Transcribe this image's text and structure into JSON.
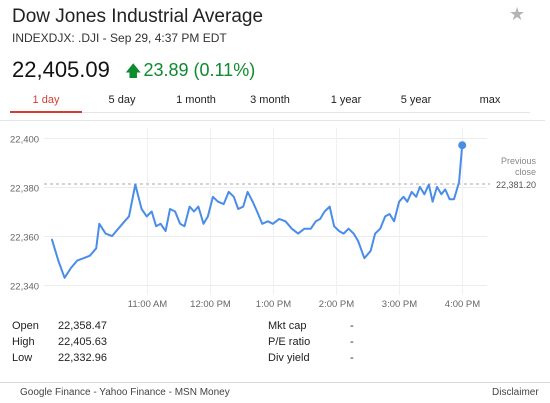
{
  "header": {
    "title": "Dow Jones Industrial Average",
    "subtitle": "INDEXDJX: .DJI - Sep 29, 4:37 PM EDT",
    "price": "22,405.09",
    "change": "23.89 (0.11%)",
    "change_color": "#0e8a2f",
    "star_icon": "star-icon"
  },
  "tabs": [
    {
      "label": "1 day",
      "active": true
    },
    {
      "label": "5 day",
      "active": false
    },
    {
      "label": "1 month",
      "active": false
    },
    {
      "label": "3 month",
      "active": false
    },
    {
      "label": "1 year",
      "active": false
    },
    {
      "label": "5 year",
      "active": false
    },
    {
      "label": "max",
      "active": false
    }
  ],
  "chart_data": {
    "type": "line",
    "y_ticks": [
      "22,400",
      "22,380",
      "22,360",
      "22,340"
    ],
    "y_tick_values": [
      22400,
      22380,
      22360,
      22340
    ],
    "x_ticks": [
      "11:00 AM",
      "12:00 PM",
      "1:00 PM",
      "2:00 PM",
      "3:00 PM",
      "4:00 PM"
    ],
    "x_tick_hours": [
      11,
      12,
      13,
      14,
      15,
      16
    ],
    "ylim": [
      22336,
      22404
    ],
    "xlim_hours": [
      9.5,
      16.25
    ],
    "previous_close": 22381.2,
    "previous_close_label": "Previous close",
    "previous_close_value": "22,381.20",
    "line_color": "#4a8de8",
    "series": [
      [
        9.5,
        22358.5
      ],
      [
        9.6,
        22350
      ],
      [
        9.7,
        22343
      ],
      [
        9.8,
        22347
      ],
      [
        9.9,
        22350
      ],
      [
        10.0,
        22351
      ],
      [
        10.1,
        22352
      ],
      [
        10.2,
        22355
      ],
      [
        10.25,
        22365
      ],
      [
        10.35,
        22361
      ],
      [
        10.45,
        22360
      ],
      [
        10.55,
        22363
      ],
      [
        10.65,
        22366
      ],
      [
        10.72,
        22368
      ],
      [
        10.82,
        22381
      ],
      [
        10.92,
        22371
      ],
      [
        11.0,
        22368
      ],
      [
        11.08,
        22370
      ],
      [
        11.15,
        22364
      ],
      [
        11.22,
        22365
      ],
      [
        11.3,
        22362
      ],
      [
        11.37,
        22371
      ],
      [
        11.45,
        22370
      ],
      [
        11.53,
        22365
      ],
      [
        11.6,
        22364
      ],
      [
        11.68,
        22372
      ],
      [
        11.75,
        22370
      ],
      [
        11.82,
        22372
      ],
      [
        11.9,
        22365
      ],
      [
        11.97,
        22368
      ],
      [
        12.05,
        22376
      ],
      [
        12.13,
        22374
      ],
      [
        12.22,
        22373
      ],
      [
        12.3,
        22378
      ],
      [
        12.38,
        22376
      ],
      [
        12.45,
        22371
      ],
      [
        12.53,
        22372
      ],
      [
        12.6,
        22378
      ],
      [
        12.68,
        22374
      ],
      [
        12.75,
        22370
      ],
      [
        12.83,
        22365
      ],
      [
        12.92,
        22366
      ],
      [
        13.0,
        22365
      ],
      [
        13.1,
        22367
      ],
      [
        13.2,
        22366
      ],
      [
        13.3,
        22363
      ],
      [
        13.4,
        22361
      ],
      [
        13.5,
        22363
      ],
      [
        13.6,
        22363
      ],
      [
        13.68,
        22366
      ],
      [
        13.75,
        22367
      ],
      [
        13.82,
        22370
      ],
      [
        13.9,
        22372
      ],
      [
        13.97,
        22364
      ],
      [
        14.05,
        22362
      ],
      [
        14.12,
        22361
      ],
      [
        14.2,
        22363
      ],
      [
        14.28,
        22361
      ],
      [
        14.35,
        22358
      ],
      [
        14.45,
        22351
      ],
      [
        14.55,
        22354
      ],
      [
        14.62,
        22361
      ],
      [
        14.7,
        22363
      ],
      [
        14.78,
        22368
      ],
      [
        14.85,
        22369
      ],
      [
        14.92,
        22366
      ],
      [
        15.0,
        22374
      ],
      [
        15.07,
        22376
      ],
      [
        15.13,
        22374
      ],
      [
        15.2,
        22378
      ],
      [
        15.27,
        22376
      ],
      [
        15.33,
        22380
      ],
      [
        15.4,
        22377
      ],
      [
        15.47,
        22381
      ],
      [
        15.53,
        22374
      ],
      [
        15.6,
        22380
      ],
      [
        15.67,
        22377
      ],
      [
        15.73,
        22379
      ],
      [
        15.8,
        22375
      ],
      [
        15.87,
        22375
      ],
      [
        15.95,
        22382
      ],
      [
        16.0,
        22397
      ]
    ]
  },
  "stats": {
    "left": [
      {
        "label": "Open",
        "value": "22,358.47"
      },
      {
        "label": "High",
        "value": "22,405.63"
      },
      {
        "label": "Low",
        "value": "22,332.96"
      }
    ],
    "right": [
      {
        "label": "Mkt cap",
        "value": "-"
      },
      {
        "label": "P/E ratio",
        "value": "-"
      },
      {
        "label": "Div yield",
        "value": "-"
      }
    ]
  },
  "footer": {
    "sources": "Google Finance - Yahoo Finance - MSN Money",
    "disclaimer": "Disclaimer"
  }
}
